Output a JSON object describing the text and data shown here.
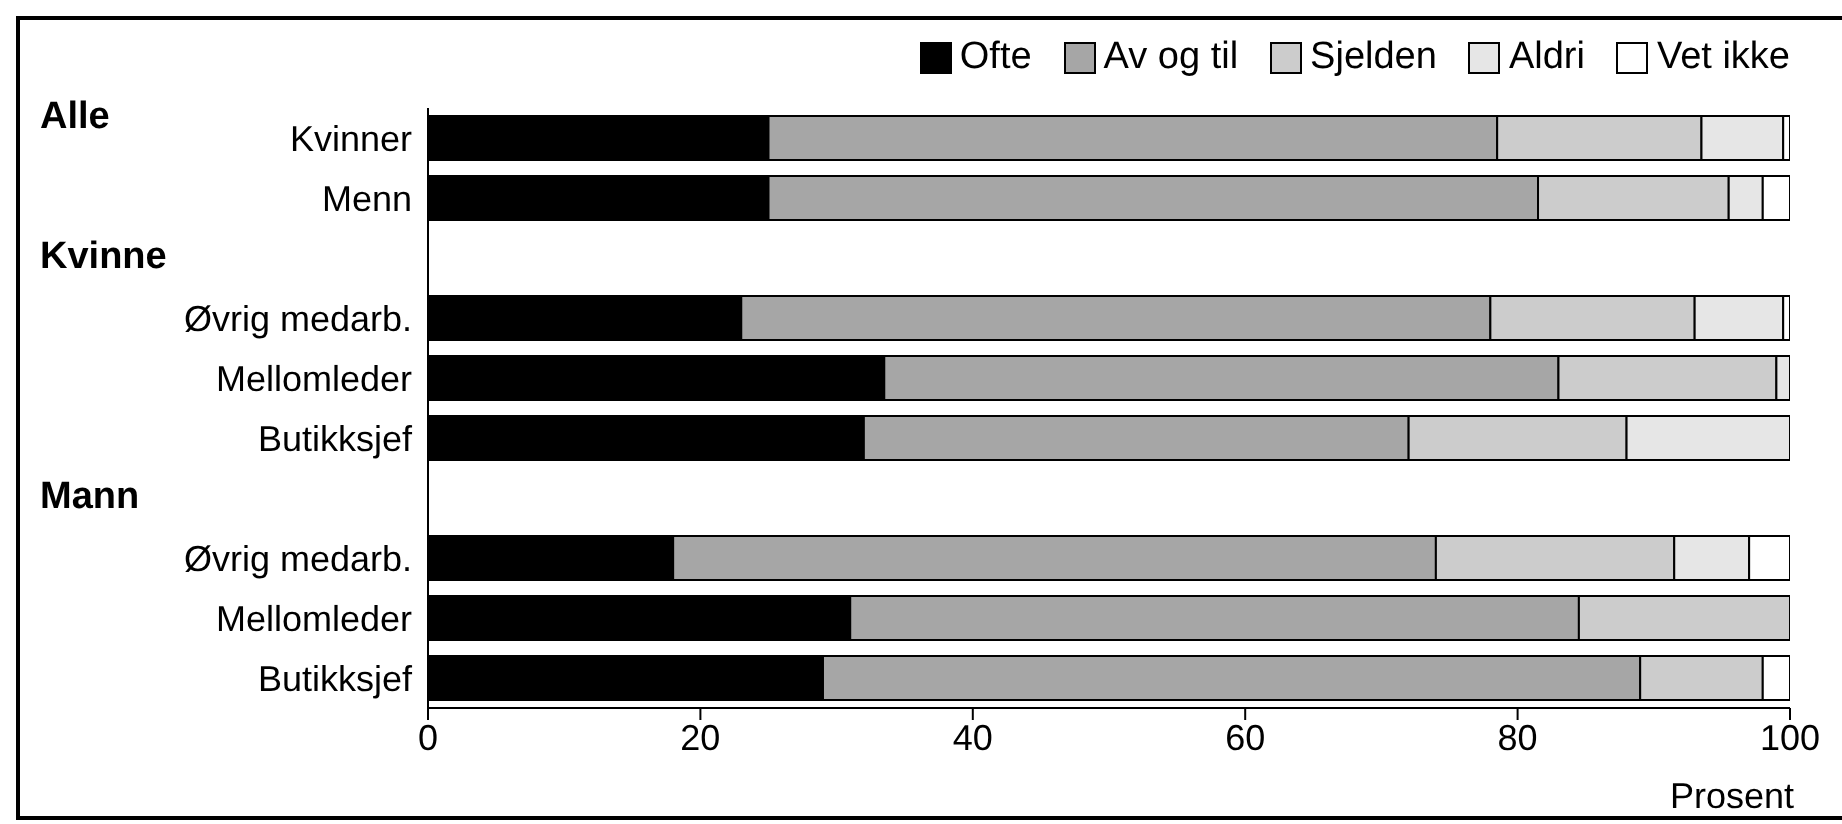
{
  "chart_data": {
    "type": "bar",
    "orientation": "horizontal",
    "stacked": true,
    "xlabel": "Prosent",
    "categories": [
      "Kvinner",
      "Menn",
      null,
      "Øvrig medarb.",
      "Mellomleder",
      "Butikksjef",
      null,
      "Øvrig medarb.",
      "Mellomleder",
      "Butikksjef"
    ],
    "series": [
      {
        "name": "Ofte",
        "color": "#000000",
        "values": [
          25,
          25,
          null,
          23,
          33.5,
          32,
          null,
          18,
          31,
          29
        ]
      },
      {
        "name": "Av og til",
        "color": "#a6a6a6",
        "values": [
          53.5,
          56.5,
          null,
          55,
          49.5,
          40,
          null,
          56,
          53.5,
          60
        ]
      },
      {
        "name": "Sjelden",
        "color": "#cccccc",
        "values": [
          15,
          14,
          null,
          15,
          16,
          16,
          null,
          17.5,
          15.5,
          9
        ]
      },
      {
        "name": "Aldri",
        "color": "#e6e6e6",
        "values": [
          6,
          2.5,
          null,
          6.5,
          1,
          12,
          null,
          5.5,
          0,
          0
        ]
      },
      {
        "name": "Vet ikke",
        "color": "#ffffff",
        "values": [
          0.5,
          2,
          null,
          0.5,
          0,
          0,
          null,
          3,
          0,
          2
        ]
      }
    ],
    "annotations": [
      "Alle",
      "Kvinne",
      "Mann"
    ],
    "xlim": [
      0,
      100
    ],
    "xticks": [
      0,
      20,
      40,
      60,
      80,
      100
    ],
    "grid": false,
    "legend": "top right"
  }
}
